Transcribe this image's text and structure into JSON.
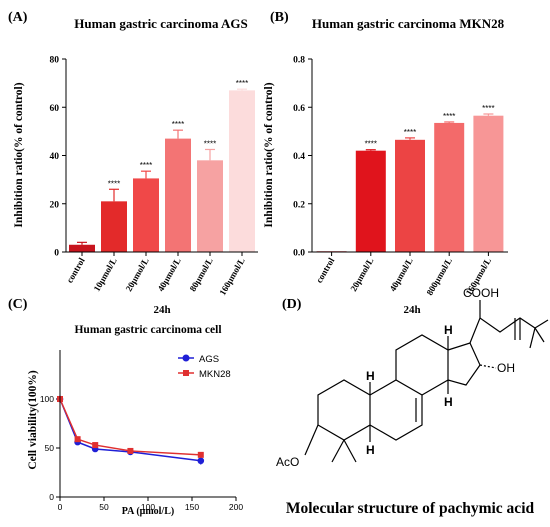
{
  "chart_data": [
    {
      "panel": "(A)",
      "type": "bar",
      "title": "Human gastric carcinoma AGS",
      "ylabel": "Inhibition ratio(% of control)",
      "xlabel": "24h",
      "ylim": [
        0,
        80
      ],
      "yticks": [
        "0",
        "20",
        "40",
        "60",
        "80"
      ],
      "categories": [
        "control",
        "10μmol/L",
        "20μmol/L",
        "40μmol/L",
        "80μmol/L",
        "160μmol/L"
      ],
      "values": [
        3,
        21,
        30.5,
        47,
        38,
        67
      ],
      "errors": [
        1,
        5,
        3,
        3.5,
        4.5,
        0.5
      ],
      "significance": [
        "",
        "****",
        "****",
        "****",
        "****",
        "****"
      ],
      "colors": [
        "#c8141e",
        "#e32a2a",
        "#f04848",
        "#f37474",
        "#f6a2a2",
        "#fcdcdc"
      ]
    },
    {
      "panel": "(B)",
      "type": "bar",
      "title": "Human gastric carcinoma MKN28",
      "ylabel": "Inhibition ratio(% of control)",
      "xlabel": "24h",
      "ylim": [
        0,
        0.8
      ],
      "yticks": [
        "0.0",
        "0.2",
        "0.4",
        "0.6",
        "0.8"
      ],
      "categories": [
        "control",
        "20μmol/L",
        "40μmol/L",
        "800μmol/L",
        "160μmol/L"
      ],
      "values": [
        0.003,
        0.42,
        0.465,
        0.535,
        0.565
      ],
      "errors": [
        0,
        0.004,
        0.008,
        0.004,
        0.007
      ],
      "significance": [
        "",
        "****",
        "****",
        "****",
        "****"
      ],
      "colors": [
        "#c8141e",
        "#e0141c",
        "#ec4444",
        "#f36a6a",
        "#f79696"
      ]
    },
    {
      "panel": "(C)",
      "type": "line",
      "title": "Human gastric carcinoma cell",
      "ylabel": "Cell viability(100%)",
      "xlabel": "PA (μmol/L)",
      "xlim": [
        0,
        200
      ],
      "ylim": [
        0,
        150
      ],
      "xticks": [
        "0",
        "50",
        "100",
        "150",
        "200"
      ],
      "yticks": [
        "0",
        "50",
        "100"
      ],
      "legend_position": "top-right",
      "series": [
        {
          "name": "AGS",
          "color": "#1f1fd6",
          "marker": "circle",
          "x": [
            0,
            20,
            40,
            80,
            160
          ],
          "y": [
            100,
            56,
            49,
            46,
            37
          ],
          "err": [
            2,
            3,
            3,
            2,
            4
          ]
        },
        {
          "name": "MKN28",
          "color": "#e03030",
          "marker": "square",
          "x": [
            0,
            20,
            40,
            80,
            160
          ],
          "y": [
            100,
            59,
            53,
            47,
            43
          ],
          "err": [
            2,
            2,
            2,
            2,
            2
          ]
        }
      ]
    }
  ],
  "molecule": {
    "panel": "(D)",
    "caption": "Molecular structure of pachymic acid",
    "labels": {
      "cooh": "COOH",
      "oh": "OH",
      "aco": "AcO",
      "h1": "H",
      "h2": "H",
      "h3": "H",
      "h4": "H"
    }
  }
}
